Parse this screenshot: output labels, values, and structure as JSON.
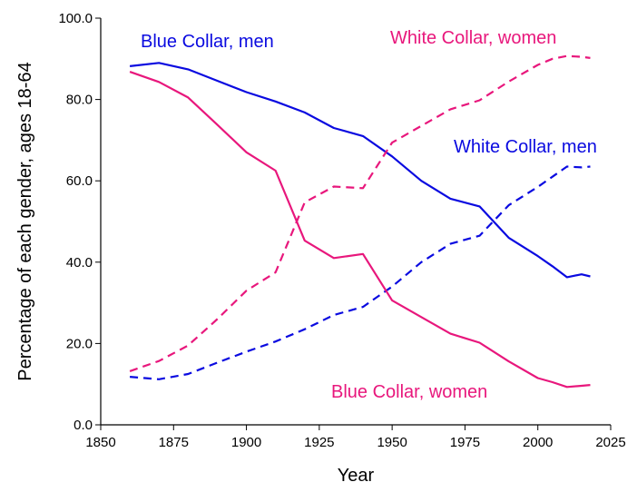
{
  "chart_data": {
    "type": "line",
    "x_label": "Year",
    "y_label": "Percentage of each gender, ages 18-64",
    "x": [
      1860,
      1870,
      1880,
      1890,
      1900,
      1910,
      1920,
      1930,
      1940,
      1950,
      1960,
      1970,
      1980,
      1990,
      2000,
      2005,
      2010,
      2015,
      2018
    ],
    "series": [
      {
        "name": "Blue Collar, men",
        "color": "#0a0ae0",
        "line_style": "solid",
        "values": [
          88.2,
          89,
          87.4,
          84.6,
          81.8,
          79.5,
          76.8,
          73,
          71,
          66,
          60,
          55.6,
          53.7,
          46,
          41.5,
          39,
          36.3,
          37,
          36.5
        ]
      },
      {
        "name": "White Collar, women",
        "color": "#e8177c",
        "line_style": "dashed",
        "values": [
          13.2,
          15.7,
          19.5,
          26,
          33,
          37.5,
          54.7,
          58.6,
          58.2,
          69.4,
          73.5,
          77.6,
          79.8,
          84.4,
          88.5,
          90,
          90.7,
          90.5,
          90.2
        ]
      },
      {
        "name": "White Collar, men",
        "color": "#0a0ae0",
        "line_style": "dashed",
        "values": [
          11.8,
          11.2,
          12.5,
          15.3,
          18,
          20.5,
          23.5,
          27,
          29,
          34,
          40,
          44.5,
          46.5,
          54,
          58.5,
          61,
          63.5,
          63.3,
          63.5
        ]
      },
      {
        "name": "Blue Collar, women",
        "color": "#e8177c",
        "line_style": "solid",
        "values": [
          86.8,
          84.3,
          80.5,
          73.8,
          67,
          62.5,
          45.3,
          41,
          42,
          30.6,
          26.5,
          22.4,
          20.2,
          15.6,
          11.5,
          10.5,
          9.3,
          9.6,
          9.8
        ]
      }
    ],
    "xlim": [
      1850,
      2025
    ],
    "xticks": [
      1850,
      1875,
      1900,
      1925,
      1950,
      1975,
      2000,
      2025
    ],
    "ylim": [
      0,
      100
    ],
    "yticks": [
      {
        "value": 0,
        "label": "0.0"
      },
      {
        "value": 20,
        "label": "20.0"
      },
      {
        "value": 40,
        "label": "40.0"
      },
      {
        "value": 60,
        "label": "60.0"
      },
      {
        "value": 80,
        "label": "80.0"
      },
      {
        "value": 100,
        "label": "100.0"
      }
    ],
    "grid": false
  }
}
